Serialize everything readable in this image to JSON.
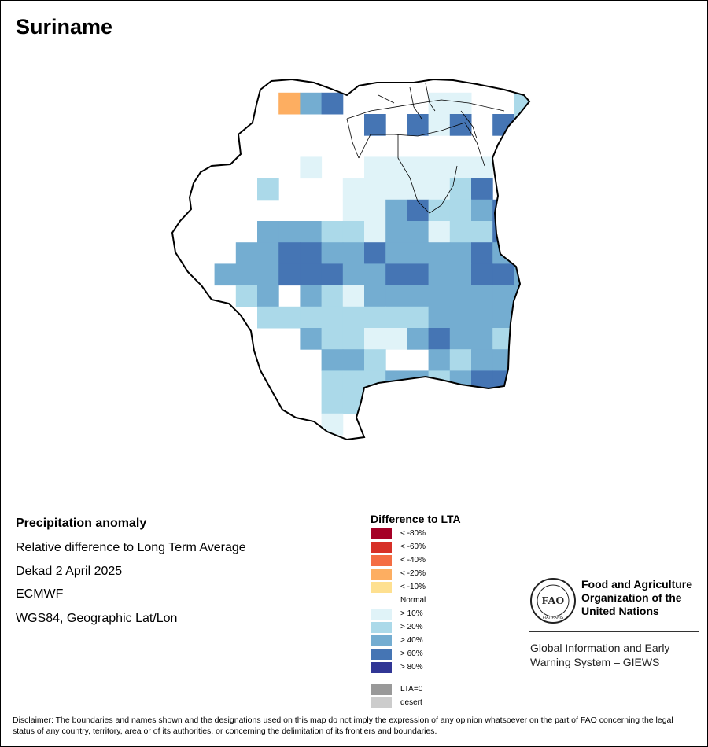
{
  "map_title": "Suriname",
  "info": {
    "title": "Precipitation anomaly",
    "line1": "Relative difference to Long Term Average",
    "line2": "Dekad 2 April 2025",
    "line3": "ECMWF",
    "line4": "WGS84, Geographic Lat/Lon"
  },
  "legend": {
    "title": "Difference to LTA",
    "classes": [
      {
        "label": "< -80%",
        "color": "#a50026"
      },
      {
        "label": "< -60%",
        "color": "#d73027"
      },
      {
        "label": "< -40%",
        "color": "#f46d43"
      },
      {
        "label": "< -20%",
        "color": "#fdae61"
      },
      {
        "label": "< -10%",
        "color": "#fee090"
      },
      {
        "label": "Normal",
        "color": "#ffffff"
      },
      {
        "label": "> 10%",
        "color": "#e0f3f8"
      },
      {
        "label": "> 20%",
        "color": "#abd9e9"
      },
      {
        "label": "> 40%",
        "color": "#74add1"
      },
      {
        "label": "> 60%",
        "color": "#4575b4"
      },
      {
        "label": "> 80%",
        "color": "#313695"
      },
      {
        "label": "LTA=0",
        "color": "#999999"
      },
      {
        "label": "desert",
        "color": "#cccccc"
      }
    ]
  },
  "org": {
    "name_line1": "Food and Agriculture",
    "name_line2": "Organization of the",
    "name_line3": "United Nations",
    "logo_text": "FAO",
    "logo_motto": "FIAT PANIS",
    "system_line1": "Global Information and Early",
    "system_line2": "Warning System – GIEWS"
  },
  "disclaimer": "Disclaimer: The boundaries and names shown and the designations used on this map do not imply the expression of any opinion whatsoever on the part of FAO concerning the legal status of any country, territory, area or of its authorities, or concerning the delimitation of its frontiers and boundaries.",
  "grid": {
    "codes": [
      "",
      "-80",
      "-60",
      "-40",
      "-20",
      "-10",
      "0",
      "10",
      "20",
      "40",
      "60",
      "80"
    ],
    "rows": [
      "0000000000000000000000000",
      "0000000000000000000000000",
      "0000000000000000000000000",
      "0000000000000000000000000",
      "00000049A6D66776080AA0DDC",
      "0000000666A6A7A6A8AA6AA60",
      "00000006666666666667A6666",
      "00000007667777776677776A0",
      "000008666777778A699786900",
      "000006666779A889A688769A0",
      "0000099988799788A8779987A",
      "000099AA99A9999A9A99889A0",
      "000999AAA99AA99AA99997A80",
      "00008969879999999999AAA00",
      "000008888888899999988AA90",
      "0000006988779A9989BA996A0",
      "00000000998669899A969A9A0",
      "000000008889989AA898A9A00",
      "00000000887787889A6898A00",
      "0000000076668679988999000",
      "000000000666C77776A000000",
      "0000000008686887700000000",
      "0000000000686888000000000",
      "0000000000888000000000000"
    ]
  }
}
